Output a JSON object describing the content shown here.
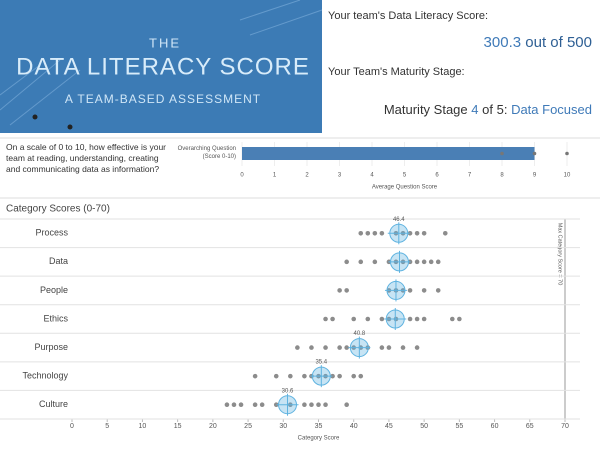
{
  "banner": {
    "kicker": "THE",
    "title": "DATA LITERACY SCORE",
    "subtitle": "A TEAM-BASED ASSESSMENT"
  },
  "score": {
    "label": "Your team's Data Literacy Score:",
    "value": "300.3",
    "suffix": "out of 500"
  },
  "maturity": {
    "label": "Your Team's Maturity Stage:",
    "prefix": "Maturity Stage",
    "stage": "4",
    "of": "of 5:",
    "name": "Data Focused"
  },
  "chart_data": [
    {
      "type": "bar",
      "question": "On a scale of 0 to 10, how effective is your team at reading, understanding, creating and communicating data as information?",
      "categories": [
        "Overarching Question (Score 0-10)"
      ],
      "values": [
        9
      ],
      "responses": [
        8,
        9,
        10
      ],
      "color": "#4a7fb5",
      "dot_color": "#777777",
      "xlim": [
        0,
        10
      ],
      "xticks": [
        0,
        1,
        2,
        3,
        4,
        5,
        6,
        7,
        8,
        9,
        10
      ],
      "xlabel": "Average Question Score"
    },
    {
      "type": "dot",
      "title": "Category Scores (0-70)",
      "categories": [
        "Process",
        "Data",
        "People",
        "Ethics",
        "Purpose",
        "Technology",
        "Culture"
      ],
      "values": [
        46.4,
        46.5,
        46,
        45.9,
        40.8,
        35.4,
        30.6
      ],
      "value_labels": [
        "46.4",
        null,
        null,
        null,
        "40.8",
        "35.4",
        "30.6"
      ],
      "responses": [
        [
          41,
          42,
          43,
          44,
          46,
          47,
          48,
          49,
          50,
          53
        ],
        [
          39,
          41,
          43,
          45,
          46,
          47,
          48,
          49,
          50,
          51,
          52
        ],
        [
          38,
          39,
          45,
          46,
          47,
          48,
          50,
          52
        ],
        [
          36,
          37,
          40,
          42,
          44,
          45,
          46,
          48,
          49,
          50,
          54,
          55
        ],
        [
          32,
          34,
          36,
          38,
          39,
          40,
          41,
          42,
          44,
          45,
          47,
          49
        ],
        [
          26,
          29,
          31,
          33,
          34,
          35,
          36,
          37,
          38,
          40,
          41
        ],
        [
          22,
          23,
          24,
          26,
          27,
          29,
          31,
          33,
          34,
          35,
          36,
          39
        ]
      ],
      "color": "#5fb3e0",
      "dot_color": "#8c8c8c",
      "xlim": [
        0,
        70
      ],
      "xticks": [
        0,
        5,
        10,
        15,
        20,
        25,
        30,
        35,
        40,
        45,
        50,
        55,
        60,
        65,
        70
      ],
      "xlabel": "Category Score",
      "reference": 70,
      "reference_label": "Max Category Score = 70"
    }
  ]
}
